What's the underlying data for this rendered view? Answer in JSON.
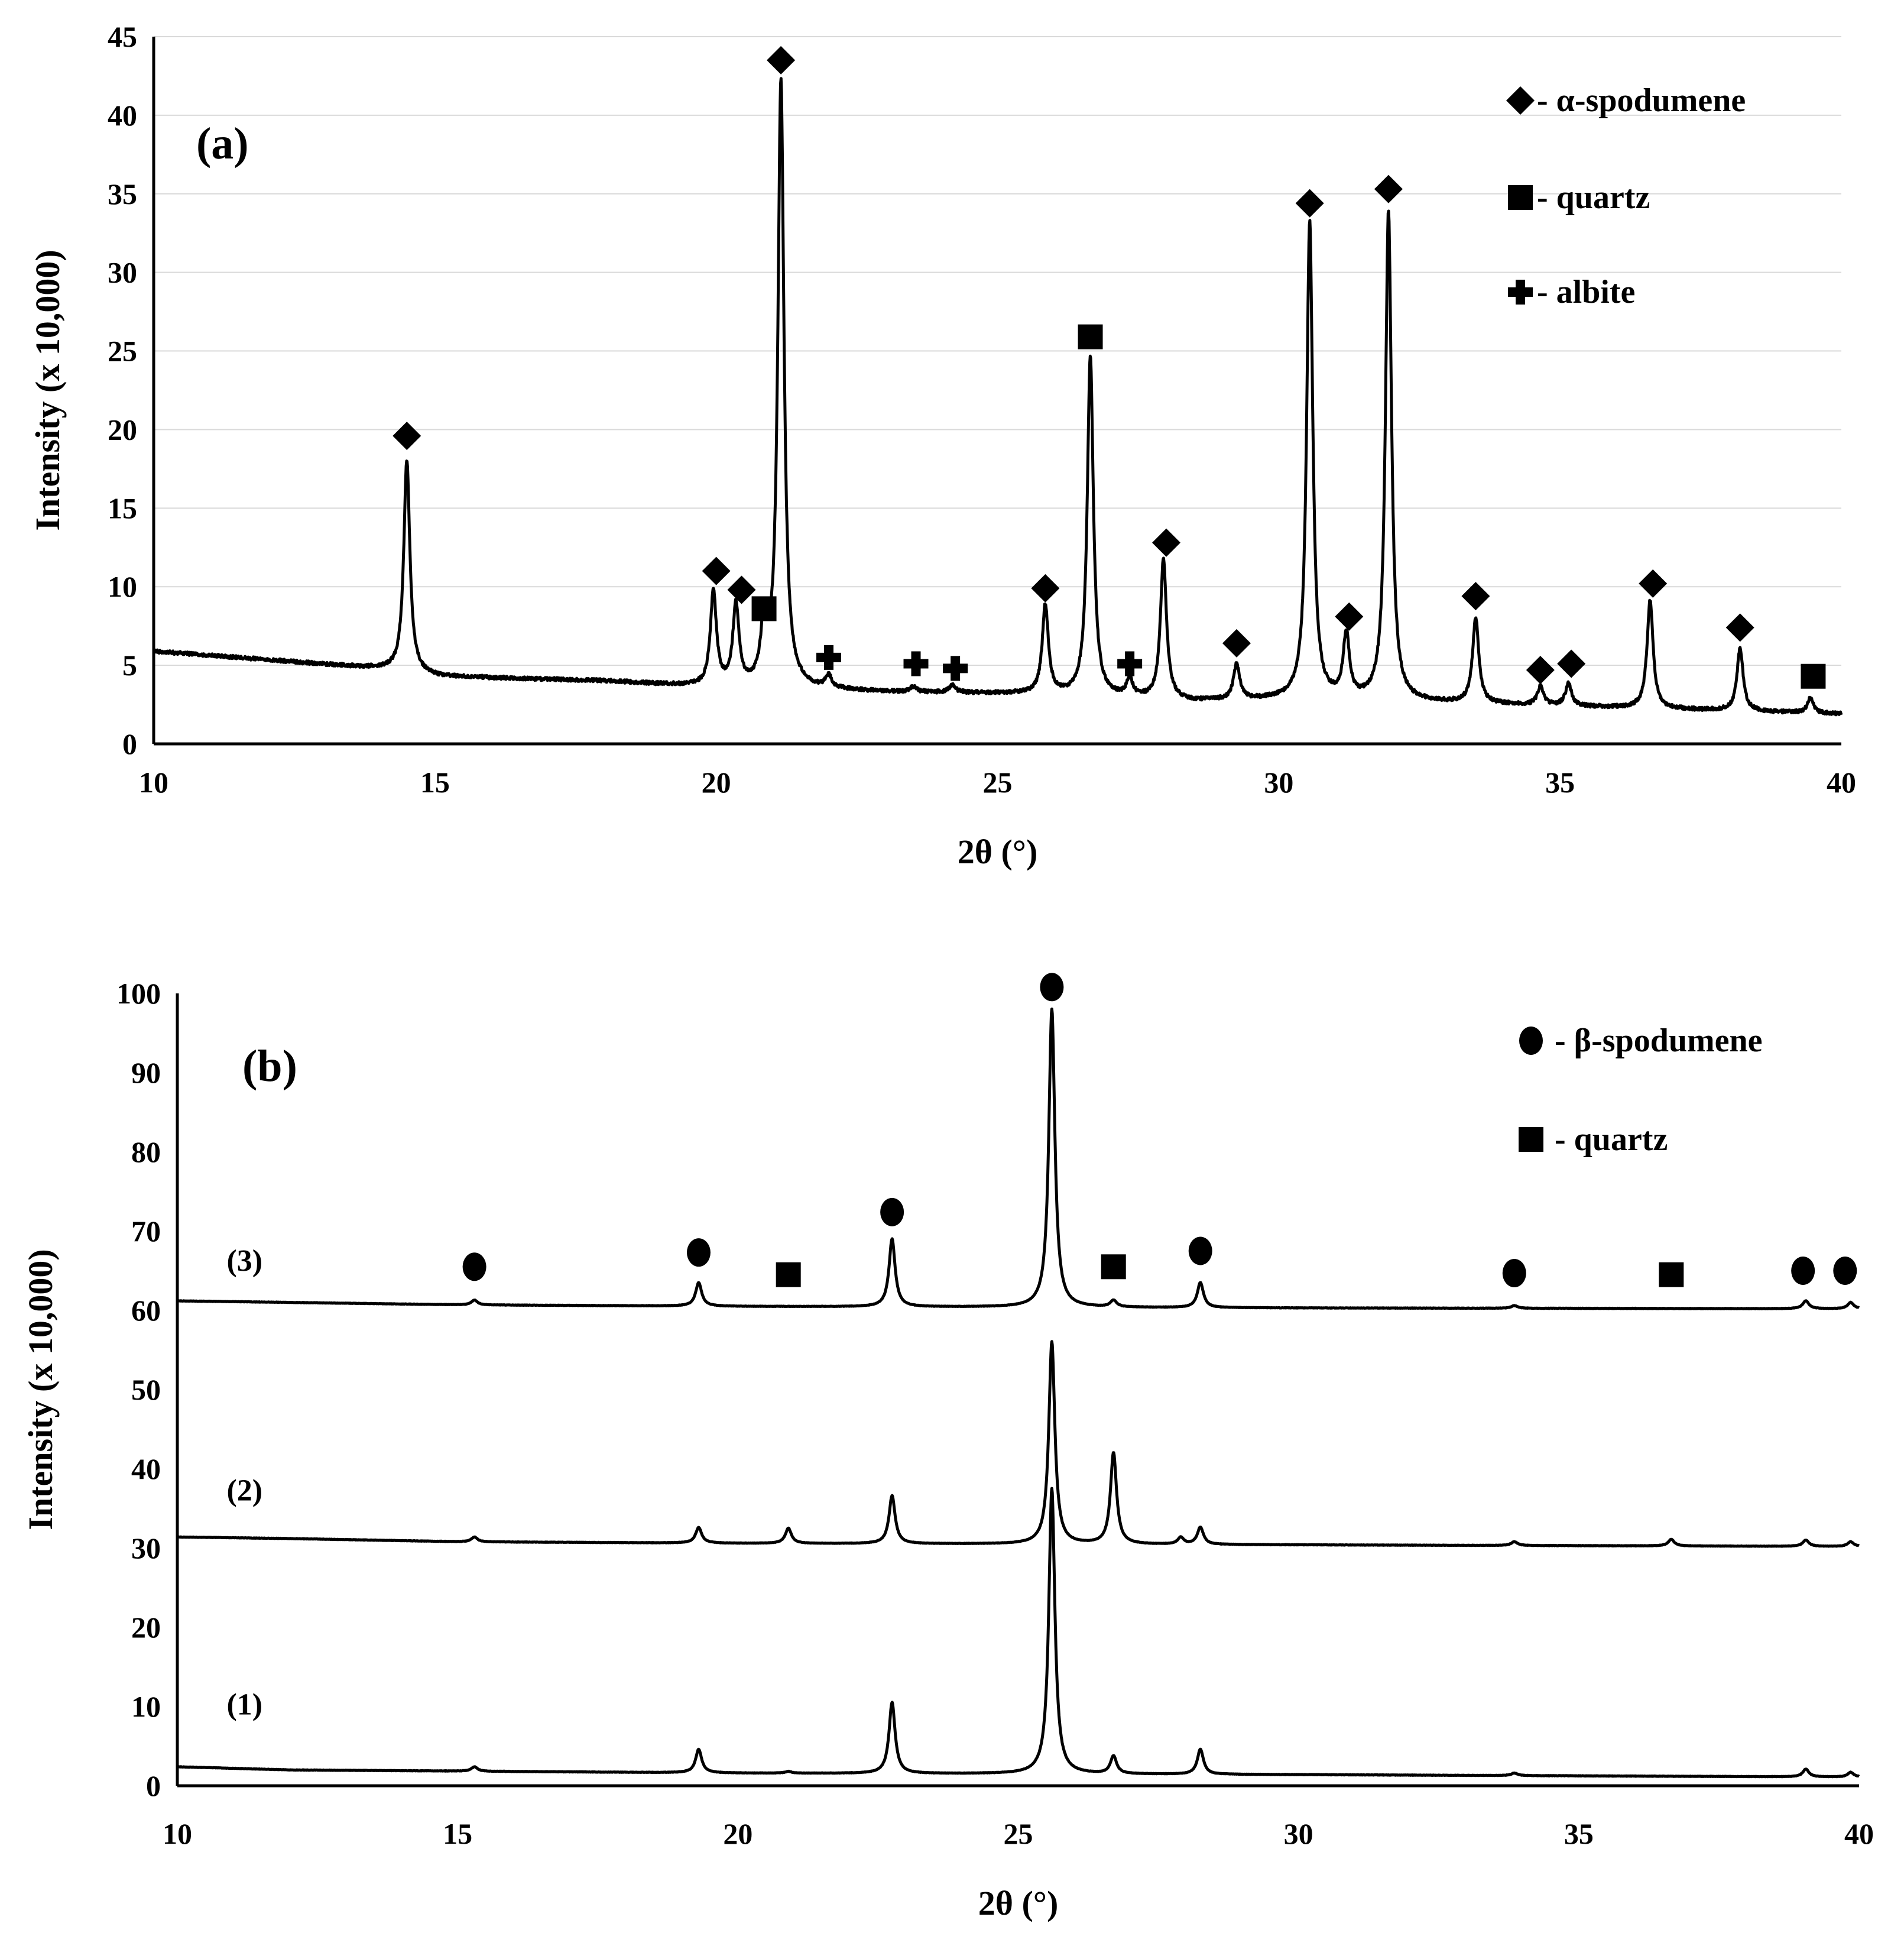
{
  "chart_data": [
    {
      "type": "line",
      "panel_label": "(a)",
      "xlabel": "2θ (°)",
      "ylabel": "Intensity (x 10,000)",
      "xlim": [
        10,
        40
      ],
      "ylim": [
        0,
        45
      ],
      "xticks": [
        10,
        15,
        20,
        25,
        30,
        35,
        40
      ],
      "yticks": [
        0,
        5,
        10,
        15,
        20,
        25,
        30,
        35,
        40,
        45
      ],
      "grid": "horizontal",
      "baseline": [
        [
          10,
          5.9
        ],
        [
          14,
          4.8
        ],
        [
          15,
          4.3
        ],
        [
          18,
          4.0
        ],
        [
          19.8,
          3.6
        ],
        [
          21.5,
          3.5
        ],
        [
          23,
          3.3
        ],
        [
          25,
          3.2
        ],
        [
          26,
          3.1
        ],
        [
          28.5,
          2.7
        ],
        [
          30,
          2.8
        ],
        [
          32,
          2.7
        ],
        [
          34,
          2.5
        ],
        [
          37,
          2.2
        ],
        [
          40,
          1.9
        ]
      ],
      "peaks": [
        {
          "x": 14.5,
          "h": 18.0
        },
        {
          "x": 19.95,
          "h": 9.6
        },
        {
          "x": 20.35,
          "h": 8.7
        },
        {
          "x": 20.85,
          "h": 7.3
        },
        {
          "x": 21.15,
          "h": 42.2
        },
        {
          "x": 22.0,
          "h": 4.2
        },
        {
          "x": 23.5,
          "h": 3.6
        },
        {
          "x": 24.2,
          "h": 3.7
        },
        {
          "x": 25.85,
          "h": 8.8
        },
        {
          "x": 26.65,
          "h": 24.6
        },
        {
          "x": 27.35,
          "h": 4.0
        },
        {
          "x": 27.95,
          "h": 11.7
        },
        {
          "x": 29.25,
          "h": 5.0
        },
        {
          "x": 30.55,
          "h": 33.2
        },
        {
          "x": 31.2,
          "h": 6.8
        },
        {
          "x": 31.95,
          "h": 33.8
        },
        {
          "x": 33.5,
          "h": 8.0
        },
        {
          "x": 34.65,
          "h": 3.6
        },
        {
          "x": 35.15,
          "h": 3.8
        },
        {
          "x": 36.6,
          "h": 9.1
        },
        {
          "x": 38.2,
          "h": 6.1
        },
        {
          "x": 39.45,
          "h": 2.9
        }
      ],
      "markers": [
        {
          "x": 14.5,
          "y": 19.6,
          "phase": "α-spodumene"
        },
        {
          "x": 20.0,
          "y": 11.0,
          "phase": "α-spodumene"
        },
        {
          "x": 20.45,
          "y": 9.8,
          "phase": "α-spodumene"
        },
        {
          "x": 20.85,
          "y": 8.6,
          "phase": "quartz"
        },
        {
          "x": 21.15,
          "y": 43.5,
          "phase": "α-spodumene"
        },
        {
          "x": 22.0,
          "y": 5.5,
          "phase": "albite"
        },
        {
          "x": 23.55,
          "y": 5.1,
          "phase": "albite"
        },
        {
          "x": 24.25,
          "y": 4.8,
          "phase": "albite"
        },
        {
          "x": 25.85,
          "y": 9.9,
          "phase": "α-spodumene"
        },
        {
          "x": 26.65,
          "y": 25.9,
          "phase": "quartz"
        },
        {
          "x": 27.35,
          "y": 5.1,
          "phase": "albite"
        },
        {
          "x": 28.0,
          "y": 12.8,
          "phase": "α-spodumene"
        },
        {
          "x": 29.25,
          "y": 6.4,
          "phase": "α-spodumene"
        },
        {
          "x": 30.55,
          "y": 34.4,
          "phase": "α-spodumene"
        },
        {
          "x": 31.25,
          "y": 8.1,
          "phase": "α-spodumene"
        },
        {
          "x": 31.95,
          "y": 35.3,
          "phase": "α-spodumene"
        },
        {
          "x": 33.5,
          "y": 9.4,
          "phase": "α-spodumene"
        },
        {
          "x": 34.65,
          "y": 4.7,
          "phase": "α-spodumene"
        },
        {
          "x": 35.2,
          "y": 5.1,
          "phase": "α-spodumene"
        },
        {
          "x": 36.65,
          "y": 10.2,
          "phase": "α-spodumene"
        },
        {
          "x": 38.2,
          "y": 7.4,
          "phase": "α-spodumene"
        },
        {
          "x": 39.5,
          "y": 4.3,
          "phase": "quartz"
        }
      ],
      "legend": [
        {
          "symbol": "diamond",
          "label": "- α-spodumene"
        },
        {
          "symbol": "square",
          "label": "- quartz"
        },
        {
          "symbol": "cross",
          "label": "- albite"
        }
      ]
    },
    {
      "type": "line",
      "panel_label": "(b)",
      "xlabel": "2θ (°)",
      "ylabel": "Intensity (x 10,000)",
      "xlim": [
        10,
        40
      ],
      "ylim": [
        0,
        100
      ],
      "xticks": [
        10,
        15,
        20,
        25,
        30,
        35,
        40
      ],
      "yticks": [
        0,
        10,
        20,
        30,
        40,
        50,
        60,
        70,
        80,
        90,
        100
      ],
      "grid": "none",
      "series": [
        {
          "label": "(1)",
          "label_x": 11.2,
          "label_y": 9,
          "baseline": [
            [
              10,
              2.4
            ],
            [
              12,
              2.0
            ],
            [
              20,
              1.6
            ],
            [
              30,
              1.4
            ],
            [
              40,
              1.1
            ]
          ],
          "peaks": [
            {
              "x": 15.3,
              "h": 2.4
            },
            {
              "x": 19.3,
              "h": 4.6
            },
            {
              "x": 20.9,
              "h": 1.8
            },
            {
              "x": 22.75,
              "h": 10.5
            },
            {
              "x": 25.6,
              "h": 37.5
            },
            {
              "x": 26.7,
              "h": 3.7
            },
            {
              "x": 28.25,
              "h": 4.6
            },
            {
              "x": 33.85,
              "h": 1.6
            },
            {
              "x": 39.05,
              "h": 2.1
            },
            {
              "x": 39.85,
              "h": 1.7
            }
          ]
        },
        {
          "label": "(2)",
          "label_x": 11.2,
          "label_y": 36,
          "baseline": [
            [
              10,
              31.4
            ],
            [
              12,
              31.2
            ],
            [
              15,
              30.8
            ],
            [
              20,
              30.6
            ],
            [
              30,
              30.4
            ],
            [
              40,
              30.2
            ]
          ],
          "peaks": [
            {
              "x": 15.3,
              "h": 31.4
            },
            {
              "x": 19.3,
              "h": 32.6
            },
            {
              "x": 20.9,
              "h": 32.5
            },
            {
              "x": 22.75,
              "h": 36.6
            },
            {
              "x": 25.6,
              "h": 56.0
            },
            {
              "x": 26.7,
              "h": 42.0
            },
            {
              "x": 27.9,
              "h": 31.3
            },
            {
              "x": 28.25,
              "h": 32.6
            },
            {
              "x": 33.85,
              "h": 30.8
            },
            {
              "x": 36.65,
              "h": 31.1
            },
            {
              "x": 39.05,
              "h": 31.0
            },
            {
              "x": 39.85,
              "h": 30.8
            }
          ]
        },
        {
          "label": "(3)",
          "label_x": 11.2,
          "label_y": 65,
          "baseline": [
            [
              10,
              61.2
            ],
            [
              12,
              61.0
            ],
            [
              15,
              60.7
            ],
            [
              20,
              60.5
            ],
            [
              30,
              60.3
            ],
            [
              40,
              60.2
            ]
          ],
          "peaks": [
            {
              "x": 15.3,
              "h": 61.3
            },
            {
              "x": 19.3,
              "h": 63.5
            },
            {
              "x": 22.75,
              "h": 69.0
            },
            {
              "x": 25.6,
              "h": 98.0
            },
            {
              "x": 26.7,
              "h": 61.2
            },
            {
              "x": 28.25,
              "h": 63.5
            },
            {
              "x": 33.85,
              "h": 60.6
            },
            {
              "x": 39.05,
              "h": 61.2
            },
            {
              "x": 39.85,
              "h": 61.0
            }
          ]
        }
      ],
      "markers": [
        {
          "x": 15.3,
          "y": 65.5,
          "phase": "β-spodumene"
        },
        {
          "x": 19.3,
          "y": 67.3,
          "phase": "β-spodumene"
        },
        {
          "x": 20.9,
          "y": 64.5,
          "phase": "quartz"
        },
        {
          "x": 22.75,
          "y": 72.4,
          "phase": "β-spodumene"
        },
        {
          "x": 25.6,
          "y": 100.8,
          "phase": "β-spodumene"
        },
        {
          "x": 26.7,
          "y": 65.5,
          "phase": "quartz"
        },
        {
          "x": 28.25,
          "y": 67.5,
          "phase": "β-spodumene"
        },
        {
          "x": 33.85,
          "y": 64.7,
          "phase": "β-spodumene"
        },
        {
          "x": 36.65,
          "y": 64.5,
          "phase": "quartz"
        },
        {
          "x": 39.0,
          "y": 65.0,
          "phase": "β-spodumene"
        },
        {
          "x": 39.75,
          "y": 65.0,
          "phase": "β-spodumene"
        }
      ],
      "legend": [
        {
          "symbol": "circle",
          "label": "- β-spodumene"
        },
        {
          "symbol": "square",
          "label": "- quartz"
        }
      ]
    }
  ]
}
